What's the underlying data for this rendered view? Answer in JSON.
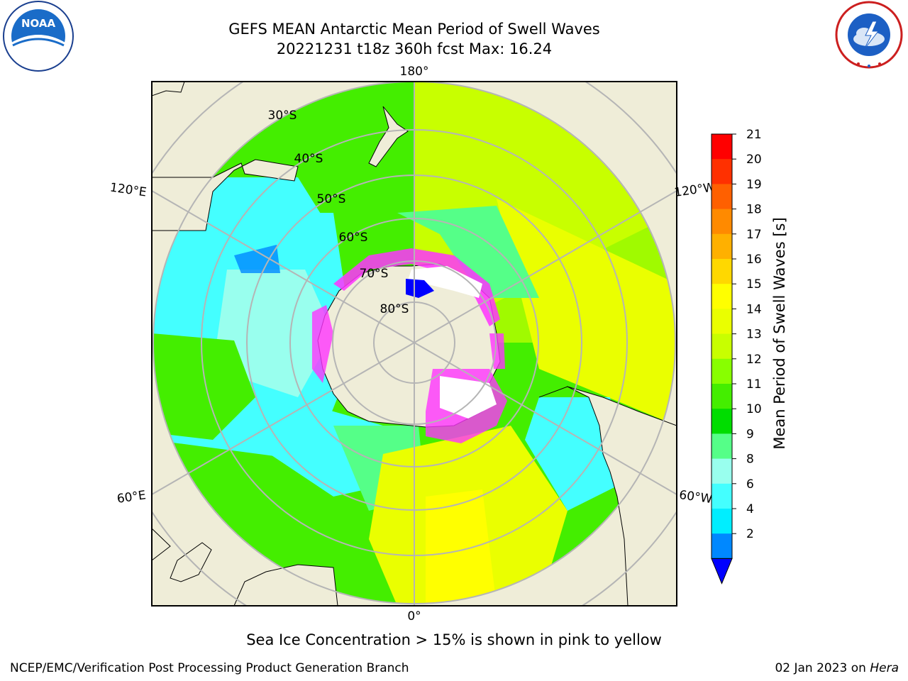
{
  "title": {
    "line1": "GEFS MEAN Antarctic Mean Period of Swell Waves",
    "line2": "20221231 t18z 360h fcst   Max: 16.24"
  },
  "logos": {
    "left": "NOAA",
    "right": "NATIONAL WEATHER SERVICE"
  },
  "map": {
    "projection": "south-polar-stereographic",
    "lon_labels": [
      "180°",
      "120°E",
      "120°W",
      "60°E",
      "60°W",
      "0°"
    ],
    "lat_labels": [
      "30°S",
      "40°S",
      "50°S",
      "60°S",
      "70°S",
      "80°S"
    ]
  },
  "colorbar": {
    "label": "Mean Period of Swell Waves [s]",
    "ticks": [
      "21",
      "20",
      "19",
      "18",
      "17",
      "16",
      "15",
      "14",
      "13",
      "12",
      "11",
      "10",
      "9",
      "8",
      "6",
      "4",
      "2"
    ],
    "colors": [
      "#ff0000",
      "#ff3000",
      "#ff6000",
      "#ff8a00",
      "#ffb000",
      "#ffd800",
      "#ffff00",
      "#eaff00",
      "#c8ff00",
      "#88ff00",
      "#44ee00",
      "#00dd00",
      "#55ff88",
      "#99ffee",
      "#44ffff",
      "#00eeff",
      "#0088ff",
      "#0000ff"
    ],
    "extend": "min"
  },
  "caption": "Sea Ice Concentration > 15% is shown in pink to yellow",
  "footer": {
    "left": "NCEP/EMC/Verification Post Processing Product Generation Branch",
    "date": "02 Jan 2023 on ",
    "machine": "Hera"
  }
}
